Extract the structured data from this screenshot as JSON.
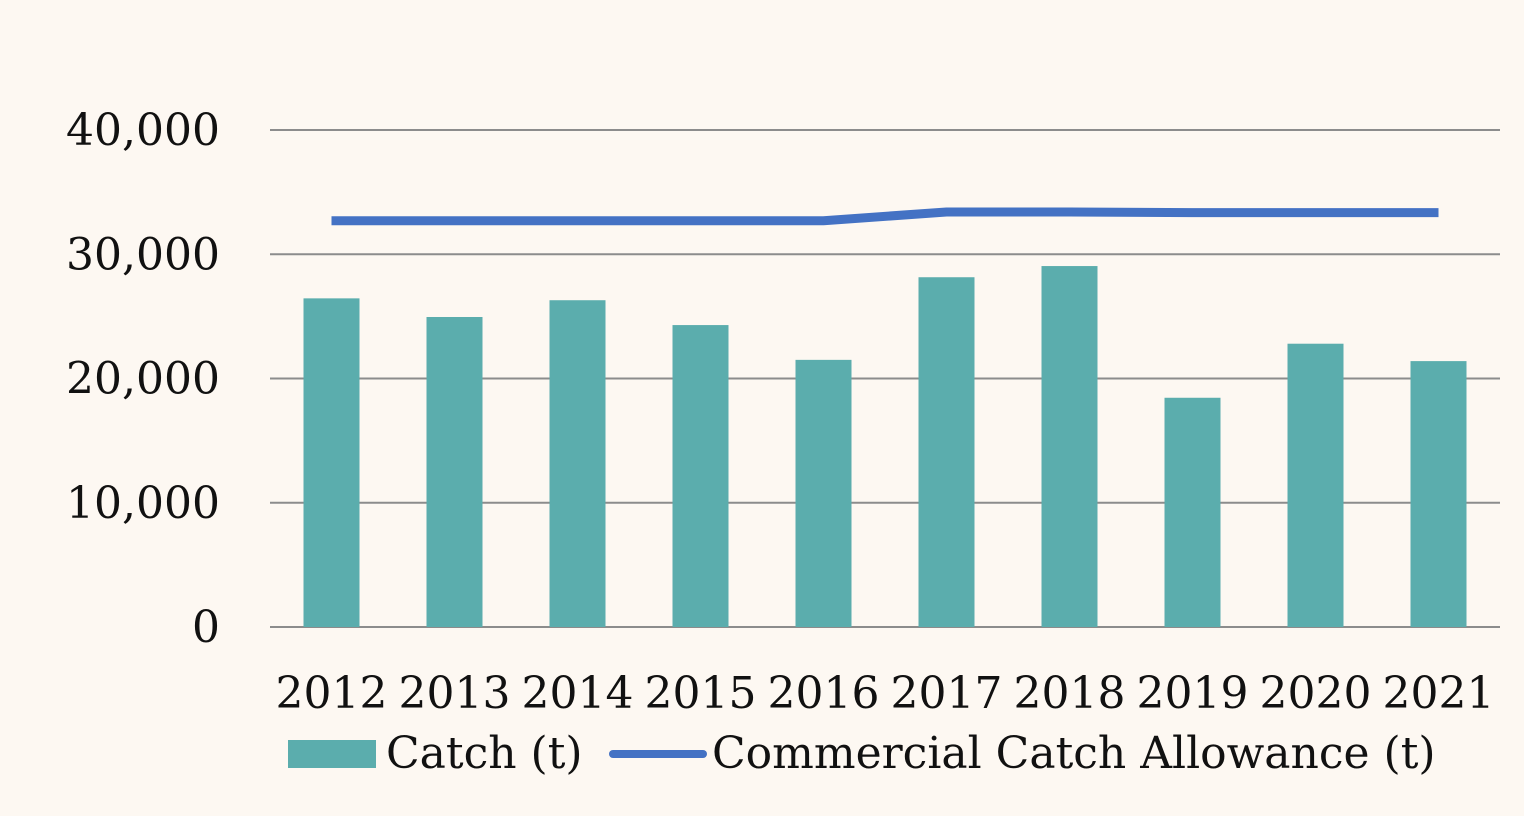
{
  "chart_data": {
    "type": "bar",
    "categories": [
      "2012",
      "2013",
      "2014",
      "2015",
      "2016",
      "2017",
      "2018",
      "2019",
      "2020",
      "2021"
    ],
    "series": [
      {
        "name": "Catch (t)",
        "type": "bar",
        "color": "#5badad",
        "values": [
          26450,
          24950,
          26300,
          24300,
          21500,
          28150,
          29050,
          18450,
          22800,
          21400
        ]
      },
      {
        "name": "Commercial Catch Allowance (t)",
        "type": "line",
        "color": "#4472c4",
        "values": [
          32700,
          32700,
          32700,
          32700,
          32700,
          33400,
          33400,
          33350,
          33350,
          33350
        ]
      }
    ],
    "ylim": [
      0,
      40000
    ],
    "yticks": [
      "0",
      "10,000",
      "20,000",
      "30,000",
      "40,000"
    ],
    "grid": true,
    "legend_position": "bottom",
    "gridline_color": "#8c8c8c"
  }
}
